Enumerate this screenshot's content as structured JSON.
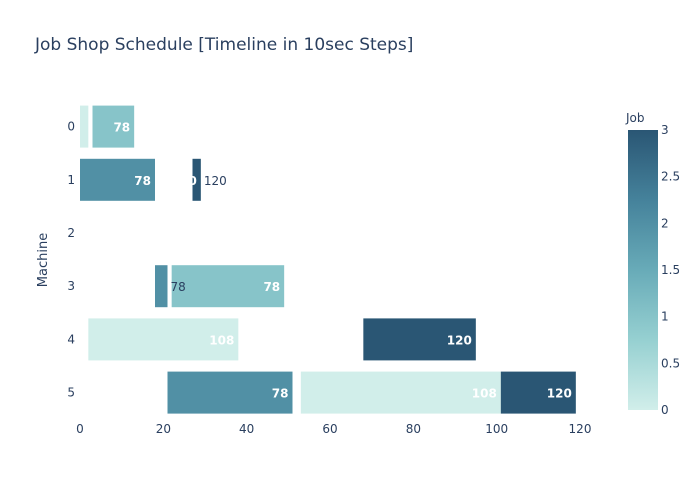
{
  "chart_data": {
    "type": "bar",
    "orientation": "horizontal",
    "title": "Job Shop Schedule [Timeline in 10sec Steps]",
    "xlabel": "",
    "ylabel": "Machine",
    "xlim": [
      0,
      120
    ],
    "x_ticks": [
      0,
      20,
      40,
      60,
      80,
      100,
      120
    ],
    "categories": [
      "0",
      "1",
      "2",
      "3",
      "4",
      "5"
    ],
    "grid": false,
    "colorbar": {
      "title": "Job",
      "range": [
        0,
        3
      ],
      "ticks": [
        "0",
        "0.5",
        "1",
        "1.5",
        "2",
        "2.5",
        "3"
      ],
      "colorscale": [
        "#d1eeea",
        "#96d0d1",
        "#68abb8",
        "#45829b",
        "#2a5674"
      ]
    },
    "tasks": [
      {
        "machine": "0",
        "job": 0,
        "start": 0,
        "end": 2,
        "label": ""
      },
      {
        "machine": "0",
        "job": 1,
        "start": 3,
        "end": 13,
        "label": "78"
      },
      {
        "machine": "1",
        "job": 2,
        "start": 0,
        "end": 18,
        "label": "78"
      },
      {
        "machine": "1",
        "job": 3,
        "start": 27,
        "end": 29,
        "label": "120"
      },
      {
        "machine": "3",
        "job": 2,
        "start": 18,
        "end": 21,
        "label": ""
      },
      {
        "machine": "3",
        "job": 1,
        "start": 22,
        "end": 49,
        "label": "78"
      },
      {
        "machine": "3",
        "job": 1,
        "start": 22,
        "end": 49,
        "label": "78"
      },
      {
        "machine": "4",
        "job": 0,
        "start": 2,
        "end": 38,
        "label": "108"
      },
      {
        "machine": "4",
        "job": 3,
        "start": 68,
        "end": 95,
        "label": "120"
      },
      {
        "machine": "5",
        "job": 2,
        "start": 21,
        "end": 51,
        "label": "78"
      },
      {
        "machine": "5",
        "job": 0,
        "start": 53,
        "end": 101,
        "label": "108"
      },
      {
        "machine": "5",
        "job": 3,
        "start": 101,
        "end": 119,
        "label": "120"
      }
    ],
    "outside_labels": [
      {
        "machine": "1",
        "after_end": 29,
        "label": "120"
      },
      {
        "machine": "3",
        "after_end": 21,
        "label": "78"
      }
    ]
  }
}
